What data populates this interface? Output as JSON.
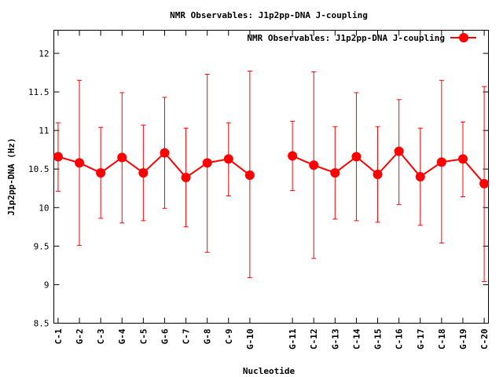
{
  "chart_data": {
    "type": "line",
    "title": "NMR Observables: J1p2pp-DNA J-coupling",
    "xlabel": "Nucleotide",
    "ylabel": "J1p2pp-DNA (Hz)",
    "ylim": [
      8.5,
      12.3
    ],
    "yticks": [
      "8.5",
      "9",
      "9.5",
      "10",
      "10.5",
      "11",
      "11.5",
      "12"
    ],
    "grid": false,
    "legend_position": "top-right",
    "series": [
      {
        "name": "NMR Observables: J1p2pp-DNA J-coupling",
        "color": "#ff0000",
        "points": [
          {
            "label": "C-1",
            "x": 1,
            "y": 10.66,
            "err_low": 10.21,
            "err_high": 11.1
          },
          {
            "label": "G-2",
            "x": 2,
            "y": 10.58,
            "err_low": 9.51,
            "err_high": 11.65
          },
          {
            "label": "C-3",
            "x": 3,
            "y": 10.45,
            "err_low": 9.86,
            "err_high": 11.04
          },
          {
            "label": "G-4",
            "x": 4,
            "y": 10.65,
            "err_low": 9.8,
            "err_high": 11.49
          },
          {
            "label": "C-5",
            "x": 5,
            "y": 10.45,
            "err_low": 9.83,
            "err_high": 11.07
          },
          {
            "label": "G-6",
            "x": 6,
            "y": 10.71,
            "err_low": 9.99,
            "err_high": 11.43
          },
          {
            "label": "C-7",
            "x": 7,
            "y": 10.39,
            "err_low": 9.75,
            "err_high": 11.03
          },
          {
            "label": "G-8",
            "x": 8,
            "y": 10.58,
            "err_low": 9.42,
            "err_high": 11.73
          },
          {
            "label": "C-9",
            "x": 9,
            "y": 10.63,
            "err_low": 10.15,
            "err_high": 11.1
          },
          {
            "label": "G-10",
            "x": 10,
            "y": 10.42,
            "err_low": 9.09,
            "err_high": 11.77
          },
          {
            "label": "G-11",
            "x": 12,
            "y": 10.67,
            "err_low": 10.22,
            "err_high": 11.12
          },
          {
            "label": "C-12",
            "x": 13,
            "y": 10.55,
            "err_low": 9.34,
            "err_high": 11.76
          },
          {
            "label": "G-13",
            "x": 14,
            "y": 10.45,
            "err_low": 9.85,
            "err_high": 11.05
          },
          {
            "label": "C-14",
            "x": 15,
            "y": 10.66,
            "err_low": 9.83,
            "err_high": 11.49
          },
          {
            "label": "G-15",
            "x": 16,
            "y": 10.43,
            "err_low": 9.81,
            "err_high": 11.05
          },
          {
            "label": "C-16",
            "x": 17,
            "y": 10.73,
            "err_low": 10.04,
            "err_high": 11.4
          },
          {
            "label": "G-17",
            "x": 18,
            "y": 10.4,
            "err_low": 9.77,
            "err_high": 11.03
          },
          {
            "label": "C-18",
            "x": 19,
            "y": 10.59,
            "err_low": 9.54,
            "err_high": 11.65
          },
          {
            "label": "G-19",
            "x": 20,
            "y": 10.63,
            "err_low": 10.14,
            "err_high": 11.11
          },
          {
            "label": "C-20",
            "x": 21,
            "y": 10.31,
            "err_low": 9.04,
            "err_high": 11.57
          }
        ]
      }
    ]
  }
}
